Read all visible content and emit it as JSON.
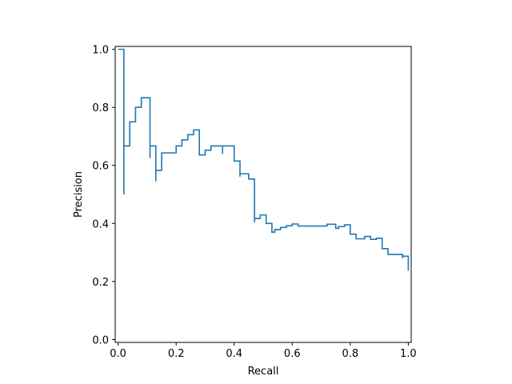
{
  "chart_data": {
    "type": "line",
    "drawstyle": "steps-post",
    "title": "",
    "xlabel": "Recall",
    "ylabel": "Precision",
    "xlim": [
      -0.01,
      1.01
    ],
    "ylim": [
      -0.01,
      1.01
    ],
    "xticks": [
      0.0,
      0.2,
      0.4,
      0.6,
      0.8,
      1.0
    ],
    "xtick_labels": [
      "0.0",
      "0.2",
      "0.4",
      "0.6",
      "0.8",
      "1.0"
    ],
    "yticks": [
      0.0,
      0.2,
      0.4,
      0.6,
      0.8,
      1.0
    ],
    "ytick_labels": [
      "0.0",
      "0.2",
      "0.4",
      "0.6",
      "0.8",
      "1.0"
    ],
    "grid": false,
    "legend": false,
    "line_color": "#1f77b4",
    "series": [
      {
        "x": [
          0.0,
          0.02,
          0.02,
          0.02,
          0.04,
          0.06,
          0.08,
          0.1,
          0.11,
          0.11,
          0.13,
          0.13,
          0.15,
          0.2,
          0.22,
          0.24,
          0.26,
          0.28,
          0.3,
          0.32,
          0.34,
          0.36,
          0.36,
          0.4,
          0.42,
          0.42,
          0.45,
          0.47,
          0.47,
          0.49,
          0.51,
          0.53,
          0.54,
          0.56,
          0.58,
          0.6,
          0.62,
          0.64,
          0.72,
          0.75,
          0.76,
          0.78,
          0.8,
          0.82,
          0.85,
          0.87,
          0.89,
          0.91,
          0.93,
          0.96,
          0.98,
          0.98,
          1.0
        ],
        "y": [
          1.0,
          1.0,
          0.5,
          0.667,
          0.75,
          0.8,
          0.833,
          0.833,
          0.625,
          0.667,
          0.545,
          0.583,
          0.643,
          0.667,
          0.688,
          0.706,
          0.722,
          0.636,
          0.652,
          0.667,
          0.667,
          0.64,
          0.667,
          0.615,
          0.561,
          0.571,
          0.553,
          0.404,
          0.417,
          0.429,
          0.4,
          0.37,
          0.379,
          0.386,
          0.392,
          0.398,
          0.391,
          0.391,
          0.397,
          0.383,
          0.389,
          0.395,
          0.363,
          0.347,
          0.355,
          0.345,
          0.349,
          0.313,
          0.293,
          0.293,
          0.28,
          0.287,
          0.237
        ]
      }
    ]
  }
}
